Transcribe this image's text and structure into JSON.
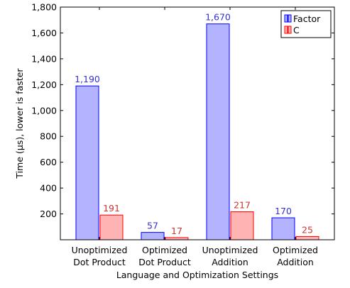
{
  "chart_data": {
    "type": "bar",
    "categories": [
      [
        "Unoptimized",
        "Dot Product"
      ],
      [
        "Optimized",
        "Dot Product"
      ],
      [
        "Unoptimized",
        "Addition"
      ],
      [
        "Optimized",
        "Addition"
      ]
    ],
    "series": [
      {
        "name": "Factor",
        "values": [
          1190,
          57,
          1670,
          170
        ],
        "labels": [
          "1,190",
          "57",
          "1,670",
          "170"
        ],
        "fill": "#b3b3ff",
        "stroke": "#0000ff",
        "label_color": "#3333cc"
      },
      {
        "name": "C",
        "values": [
          191,
          17,
          217,
          25
        ],
        "labels": [
          "191",
          "17",
          "217",
          "25"
        ],
        "fill": "#ffb3b3",
        "stroke": "#ff0000",
        "label_color": "#cc3333"
      }
    ],
    "xlabel": "Language and Optimization Settings",
    "ylabel": "Time (µs), lower is faster",
    "ylim": [
      0,
      1800
    ],
    "yticks": [
      200,
      400,
      600,
      800,
      1000,
      1200,
      1400,
      1600,
      1800
    ],
    "ytick_labels": [
      "200",
      "400",
      "600",
      "800",
      "1,000",
      "1,200",
      "1,400",
      "1,600",
      "1,800"
    ],
    "grid": false,
    "legend_position": "top-right"
  }
}
